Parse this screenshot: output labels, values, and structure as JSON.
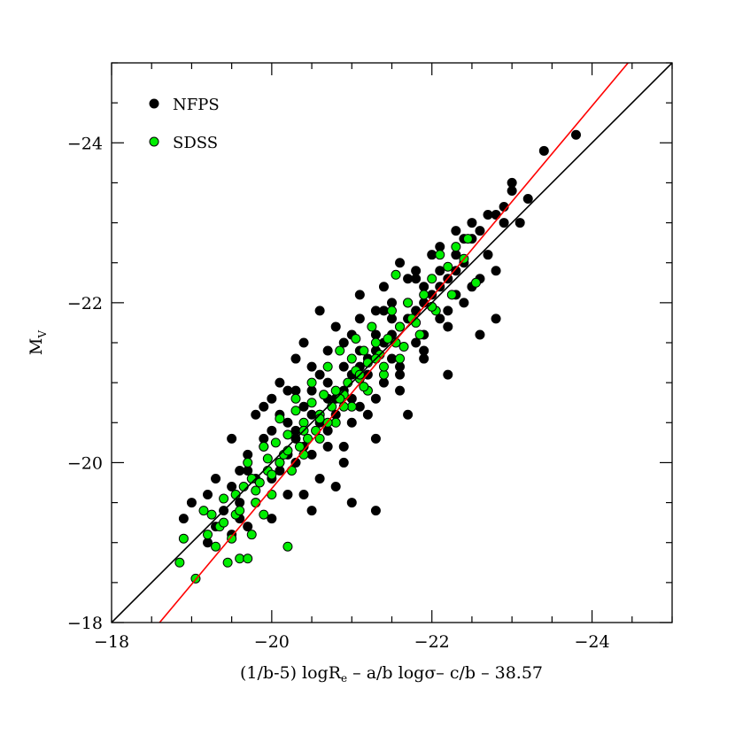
{
  "chart_data": {
    "type": "scatter",
    "title": "",
    "xlabel": "(1/b-5) logR_e – a/b logσ– c/b – 38.57",
    "ylabel": "M_V",
    "xlim": [
      -18,
      -25
    ],
    "ylim": [
      -18,
      -25
    ],
    "x_ticks": [
      -18,
      -20,
      -22,
      -24
    ],
    "y_ticks": [
      -18,
      -20,
      -22,
      -24
    ],
    "x_tick_labels": [
      "−18",
      "−20",
      "−22",
      "−24"
    ],
    "y_tick_labels": [
      "−18",
      "−20",
      "−22",
      "−24"
    ],
    "grid": false,
    "legend_position": "top-left",
    "series": [
      {
        "name": "NFPS",
        "color": "#000000",
        "points": [
          [
            -18.9,
            -19.3
          ],
          [
            -19.0,
            -19.5
          ],
          [
            -19.2,
            -19.6
          ],
          [
            -19.3,
            -19.8
          ],
          [
            -19.4,
            -19.4
          ],
          [
            -19.5,
            -19.7
          ],
          [
            -19.6,
            -19.9
          ],
          [
            -19.7,
            -20.1
          ],
          [
            -19.8,
            -19.8
          ],
          [
            -19.9,
            -20.2
          ],
          [
            -20.0,
            -20.4
          ],
          [
            -20.1,
            -20.0
          ],
          [
            -20.2,
            -20.5
          ],
          [
            -20.3,
            -20.3
          ],
          [
            -20.4,
            -20.7
          ],
          [
            -20.5,
            -20.9
          ],
          [
            -20.6,
            -20.6
          ],
          [
            -20.7,
            -21.0
          ],
          [
            -20.8,
            -20.8
          ],
          [
            -20.9,
            -21.2
          ],
          [
            -21.0,
            -21.1
          ],
          [
            -21.1,
            -21.4
          ],
          [
            -21.2,
            -21.3
          ],
          [
            -21.3,
            -21.6
          ],
          [
            -21.4,
            -21.5
          ],
          [
            -21.5,
            -21.8
          ],
          [
            -21.6,
            -21.7
          ],
          [
            -21.7,
            -22.0
          ],
          [
            -21.8,
            -21.9
          ],
          [
            -21.9,
            -22.2
          ],
          [
            -22.0,
            -22.1
          ],
          [
            -22.1,
            -22.4
          ],
          [
            -22.2,
            -22.3
          ],
          [
            -22.3,
            -22.6
          ],
          [
            -22.4,
            -22.5
          ],
          [
            -22.5,
            -22.8
          ],
          [
            -22.6,
            -22.9
          ],
          [
            -22.7,
            -22.6
          ],
          [
            -22.8,
            -23.1
          ],
          [
            -22.9,
            -23.0
          ],
          [
            -23.0,
            -23.5
          ],
          [
            -23.0,
            -23.4
          ],
          [
            -23.2,
            -23.3
          ],
          [
            -23.4,
            -23.9
          ],
          [
            -23.8,
            -24.1
          ],
          [
            -22.8,
            -21.8
          ],
          [
            -22.6,
            -21.6
          ],
          [
            -22.2,
            -21.1
          ],
          [
            -21.7,
            -20.6
          ],
          [
            -21.3,
            -20.3
          ],
          [
            -21.0,
            -19.5
          ],
          [
            -21.3,
            -19.4
          ],
          [
            -20.8,
            -19.7
          ],
          [
            -20.5,
            -19.4
          ],
          [
            -20.4,
            -19.6
          ],
          [
            -20.0,
            -19.3
          ],
          [
            -19.7,
            -19.2
          ],
          [
            -19.6,
            -19.3
          ],
          [
            -19.9,
            -20.7
          ],
          [
            -20.1,
            -21.0
          ],
          [
            -20.3,
            -21.3
          ],
          [
            -20.4,
            -21.5
          ],
          [
            -20.6,
            -21.9
          ],
          [
            -20.8,
            -21.7
          ],
          [
            -21.1,
            -22.1
          ],
          [
            -21.4,
            -22.2
          ],
          [
            -21.6,
            -22.5
          ],
          [
            -21.8,
            -22.3
          ],
          [
            -22.0,
            -22.6
          ],
          [
            -22.3,
            -22.9
          ],
          [
            -22.5,
            -23.0
          ],
          [
            -22.7,
            -23.1
          ],
          [
            -20.2,
            -20.9
          ],
          [
            -20.5,
            -20.1
          ],
          [
            -20.7,
            -20.4
          ],
          [
            -20.9,
            -20.2
          ],
          [
            -21.1,
            -20.7
          ],
          [
            -21.2,
            -20.9
          ],
          [
            -21.4,
            -21.0
          ],
          [
            -21.5,
            -21.3
          ],
          [
            -21.6,
            -21.1
          ],
          [
            -21.8,
            -21.5
          ],
          [
            -21.9,
            -21.6
          ],
          [
            -22.1,
            -21.8
          ],
          [
            -22.3,
            -22.1
          ],
          [
            -22.4,
            -22.0
          ],
          [
            -22.6,
            -22.3
          ],
          [
            -19.5,
            -20.3
          ],
          [
            -19.8,
            -20.6
          ],
          [
            -20.0,
            -20.8
          ],
          [
            -20.2,
            -20.1
          ],
          [
            -20.4,
            -20.2
          ],
          [
            -20.6,
            -20.5
          ],
          [
            -20.8,
            -20.6
          ],
          [
            -21.0,
            -20.8
          ],
          [
            -21.2,
            -21.1
          ],
          [
            -19.3,
            -19.2
          ],
          [
            -19.6,
            -19.5
          ],
          [
            -20.0,
            -19.8
          ],
          [
            -20.3,
            -20.0
          ],
          [
            -20.7,
            -20.2
          ],
          [
            -21.0,
            -20.5
          ],
          [
            -21.3,
            -20.8
          ],
          [
            -21.6,
            -21.2
          ],
          [
            -21.9,
            -21.4
          ],
          [
            -22.2,
            -21.7
          ],
          [
            -20.9,
            -21.5
          ],
          [
            -21.1,
            -21.8
          ],
          [
            -21.3,
            -21.9
          ],
          [
            -21.5,
            -22.0
          ],
          [
            -21.7,
            -22.3
          ],
          [
            -20.5,
            -21.2
          ],
          [
            -20.7,
            -21.4
          ],
          [
            -20.3,
            -20.9
          ],
          [
            -19.9,
            -20.3
          ],
          [
            -19.7,
            -19.9
          ],
          [
            -20.1,
            -20.6
          ],
          [
            -20.6,
            -21.1
          ],
          [
            -21.0,
            -21.6
          ],
          [
            -21.4,
            -21.9
          ],
          [
            -21.8,
            -22.4
          ],
          [
            -22.1,
            -22.7
          ],
          [
            -22.4,
            -22.8
          ],
          [
            -22.9,
            -23.2
          ],
          [
            -23.1,
            -23.0
          ],
          [
            -22.8,
            -22.4
          ],
          [
            -22.5,
            -22.2
          ],
          [
            -22.2,
            -21.9
          ],
          [
            -21.9,
            -21.3
          ],
          [
            -21.6,
            -20.9
          ],
          [
            -21.2,
            -20.6
          ],
          [
            -20.9,
            -20.0
          ],
          [
            -20.6,
            -19.8
          ],
          [
            -20.2,
            -19.6
          ],
          [
            -19.8,
            -19.5
          ],
          [
            -19.5,
            -19.1
          ],
          [
            -19.2,
            -19.0
          ],
          [
            -20.1,
            -19.9
          ],
          [
            -20.3,
            -20.4
          ],
          [
            -20.5,
            -20.6
          ],
          [
            -20.7,
            -20.8
          ],
          [
            -20.9,
            -20.9
          ],
          [
            -21.1,
            -21.2
          ],
          [
            -21.3,
            -21.4
          ],
          [
            -21.5,
            -21.6
          ],
          [
            -21.7,
            -21.8
          ],
          [
            -21.9,
            -22.0
          ],
          [
            -22.1,
            -22.2
          ],
          [
            -22.3,
            -22.4
          ]
        ]
      },
      {
        "name": "SDSS",
        "color": "#00ee00",
        "points": [
          [
            -18.85,
            -18.75
          ],
          [
            -18.9,
            -19.05
          ],
          [
            -19.05,
            -18.55
          ],
          [
            -19.15,
            -19.4
          ],
          [
            -19.2,
            -19.1
          ],
          [
            -19.3,
            -18.95
          ],
          [
            -19.35,
            -19.2
          ],
          [
            -19.45,
            -18.75
          ],
          [
            -19.5,
            -19.05
          ],
          [
            -19.6,
            -18.8
          ],
          [
            -19.7,
            -18.8
          ],
          [
            -19.75,
            -19.1
          ],
          [
            -19.4,
            -19.55
          ],
          [
            -19.55,
            -19.35
          ],
          [
            -19.8,
            -19.5
          ],
          [
            -19.9,
            -19.35
          ],
          [
            -20.0,
            -19.6
          ],
          [
            -20.2,
            -18.95
          ],
          [
            -19.65,
            -19.7
          ],
          [
            -19.85,
            -19.75
          ],
          [
            -19.95,
            -19.9
          ],
          [
            -20.1,
            -20.0
          ],
          [
            -20.25,
            -19.9
          ],
          [
            -20.35,
            -20.2
          ],
          [
            -19.7,
            -20.0
          ],
          [
            -19.9,
            -20.2
          ],
          [
            -20.05,
            -20.25
          ],
          [
            -20.2,
            -20.35
          ],
          [
            -20.4,
            -20.5
          ],
          [
            -20.55,
            -20.4
          ],
          [
            -20.3,
            -20.65
          ],
          [
            -20.5,
            -20.75
          ],
          [
            -20.65,
            -20.85
          ],
          [
            -20.8,
            -20.9
          ],
          [
            -20.95,
            -21.0
          ],
          [
            -21.1,
            -21.05
          ],
          [
            -20.6,
            -20.6
          ],
          [
            -20.75,
            -20.7
          ],
          [
            -20.9,
            -20.85
          ],
          [
            -21.05,
            -21.15
          ],
          [
            -21.2,
            -21.25
          ],
          [
            -21.35,
            -21.35
          ],
          [
            -21.0,
            -21.3
          ],
          [
            -21.15,
            -21.4
          ],
          [
            -21.3,
            -21.5
          ],
          [
            -21.45,
            -21.55
          ],
          [
            -21.6,
            -21.7
          ],
          [
            -21.75,
            -21.8
          ],
          [
            -20.85,
            -21.4
          ],
          [
            -21.05,
            -21.55
          ],
          [
            -21.25,
            -21.7
          ],
          [
            -21.5,
            -21.9
          ],
          [
            -21.7,
            -22.0
          ],
          [
            -21.9,
            -22.1
          ],
          [
            -21.55,
            -22.35
          ],
          [
            -22.0,
            -22.3
          ],
          [
            -22.2,
            -22.45
          ],
          [
            -22.4,
            -22.55
          ],
          [
            -22.55,
            -22.25
          ],
          [
            -22.45,
            -22.8
          ],
          [
            -22.3,
            -22.7
          ],
          [
            -22.1,
            -22.6
          ],
          [
            -20.4,
            -20.1
          ],
          [
            -20.6,
            -20.3
          ],
          [
            -20.8,
            -20.5
          ],
          [
            -21.0,
            -20.7
          ],
          [
            -21.2,
            -20.9
          ],
          [
            -21.4,
            -21.1
          ],
          [
            -21.6,
            -21.3
          ],
          [
            -20.1,
            -20.55
          ],
          [
            -20.3,
            -20.8
          ],
          [
            -20.5,
            -21.0
          ],
          [
            -20.7,
            -21.2
          ],
          [
            -19.6,
            -19.4
          ],
          [
            -19.8,
            -19.65
          ],
          [
            -20.0,
            -19.85
          ],
          [
            -20.15,
            -20.1
          ],
          [
            -20.45,
            -20.3
          ],
          [
            -20.7,
            -20.5
          ],
          [
            -20.9,
            -20.7
          ],
          [
            -21.15,
            -20.95
          ],
          [
            -21.4,
            -21.2
          ],
          [
            -21.65,
            -21.45
          ],
          [
            -21.85,
            -21.6
          ],
          [
            -22.05,
            -21.9
          ],
          [
            -22.25,
            -22.1
          ],
          [
            -19.25,
            -19.35
          ],
          [
            -19.4,
            -19.25
          ],
          [
            -19.55,
            -19.6
          ],
          [
            -19.75,
            -19.8
          ],
          [
            -19.95,
            -20.05
          ],
          [
            -20.2,
            -20.15
          ],
          [
            -20.4,
            -20.4
          ],
          [
            -20.6,
            -20.55
          ],
          [
            -20.85,
            -20.8
          ],
          [
            -21.1,
            -21.1
          ],
          [
            -21.3,
            -21.3
          ],
          [
            -21.55,
            -21.5
          ],
          [
            -21.8,
            -21.75
          ],
          [
            -22.0,
            -21.95
          ]
        ]
      }
    ],
    "lines": [
      {
        "color": "#000000",
        "x": [
          -18,
          -25
        ],
        "y": [
          -18,
          -25
        ]
      },
      {
        "color": "#ff0000",
        "x": [
          -18.6,
          -24.45
        ],
        "y": [
          -18.0,
          -25.0
        ]
      }
    ]
  }
}
